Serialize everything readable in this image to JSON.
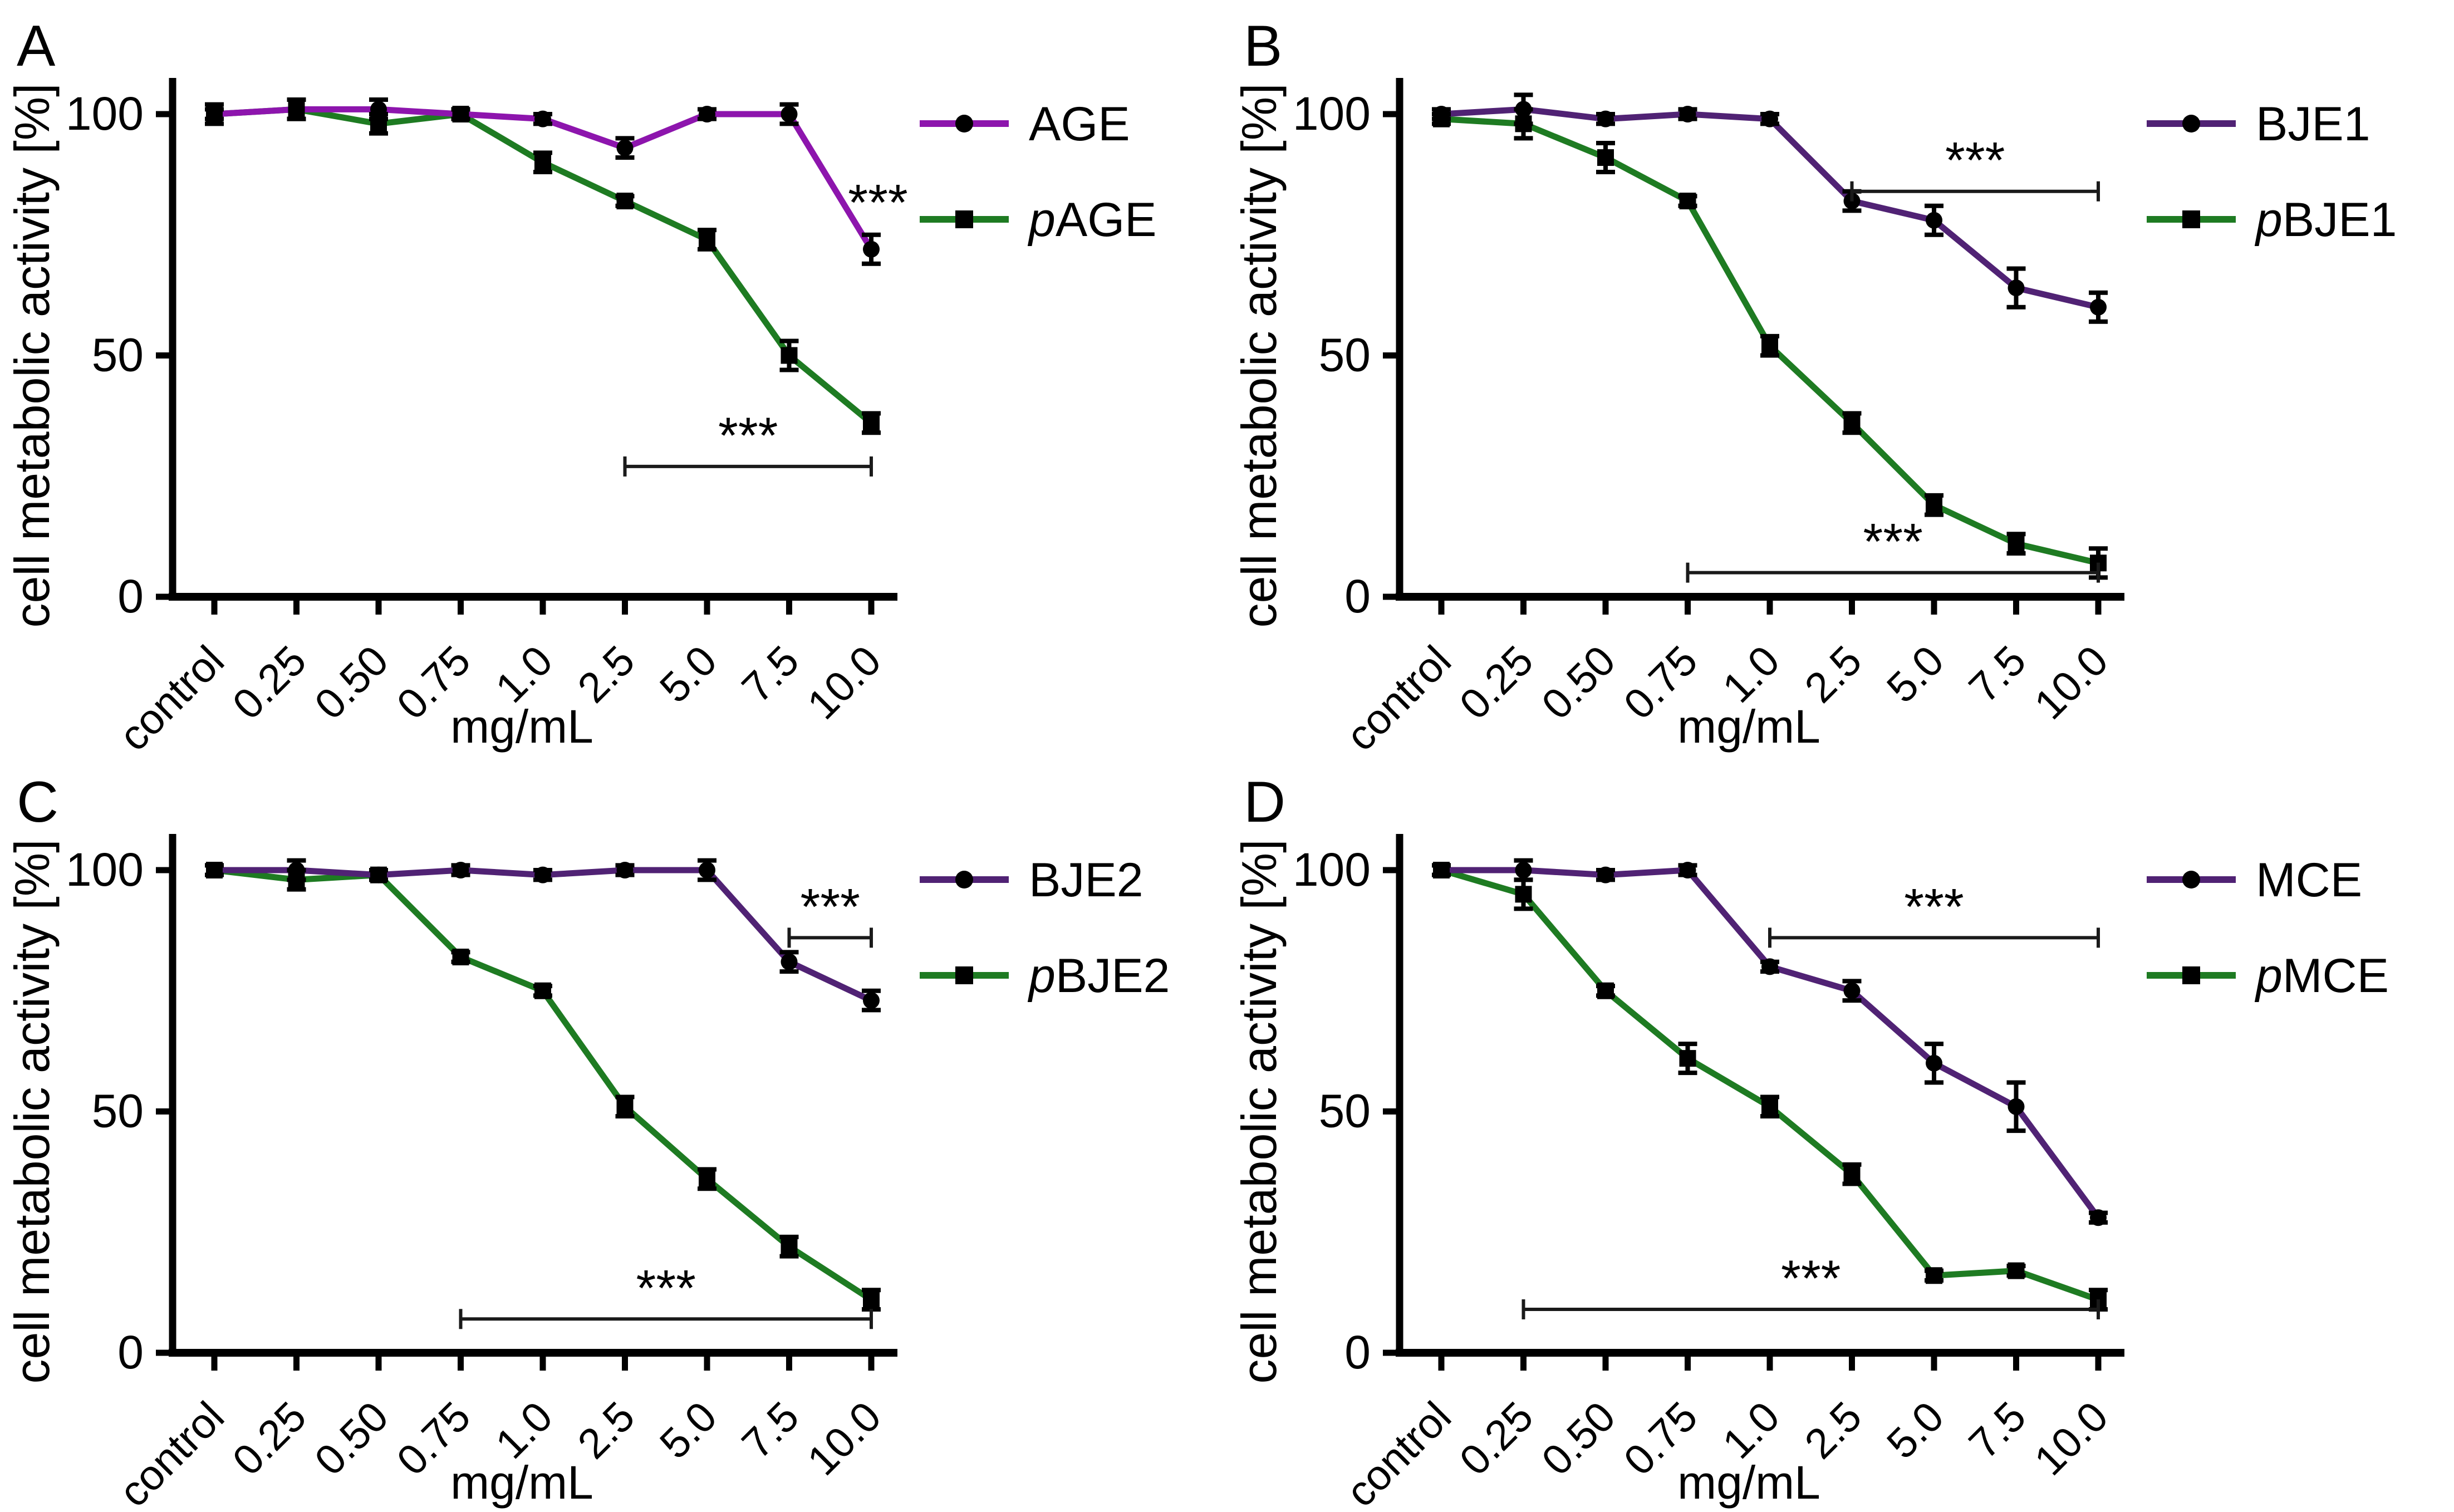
{
  "figure_title": "",
  "axis": {
    "xlabel": "mg/mL",
    "ylabel": "cell metabolic activity [%]",
    "categories": [
      "control",
      "0.25",
      "0.50",
      "0.75",
      "1.0",
      "2.5",
      "5.0",
      "7.5",
      "10.0"
    ],
    "yticks": [
      0,
      50,
      100
    ]
  },
  "colors": {
    "purple_bright": "#8D15AD",
    "purple_dark": "#502274",
    "green": "#1E7B22",
    "marker_black": "#000000",
    "bracket": "#1a1a1a"
  },
  "chart_data": [
    {
      "type": "line",
      "panel": "A",
      "xlabel": "mg/mL",
      "ylabel": "cell metabolic activity [%]",
      "categories": [
        "control",
        "0.25",
        "0.50",
        "0.75",
        "1.0",
        "2.5",
        "5.0",
        "7.5",
        "10.0"
      ],
      "yticks": [
        0,
        50,
        100
      ],
      "ylim": [
        0,
        112
      ],
      "grid": false,
      "legend_position": "right",
      "series": [
        {
          "name": "AGE",
          "legend": {
            "italic": "",
            "text": "AGE"
          },
          "color": "#8D15AD",
          "marker": "circle",
          "values": [
            100,
            101,
            101,
            100,
            99,
            93,
            100,
            100,
            72
          ],
          "errors": [
            2,
            2,
            2,
            1,
            1,
            2,
            1,
            2,
            3
          ]
        },
        {
          "name": "pAGE",
          "legend": {
            "italic": "p",
            "text": "AGE"
          },
          "color": "#1E7B22",
          "marker": "square",
          "values": [
            100,
            101,
            98,
            100,
            90,
            82,
            74,
            50,
            36
          ],
          "errors": [
            1,
            2,
            2,
            1,
            2,
            1,
            2,
            3,
            2
          ]
        }
      ],
      "point_annotations": [
        {
          "text": "***",
          "category": "10.0",
          "y": 78,
          "dx": 12
        }
      ],
      "brackets": [
        {
          "text": "***",
          "from": "2.5",
          "to": "10.0",
          "y": 27
        }
      ]
    },
    {
      "type": "line",
      "panel": "B",
      "xlabel": "mg/mL",
      "ylabel": "cell metabolic activity [%]",
      "categories": [
        "control",
        "0.25",
        "0.50",
        "0.75",
        "1.0",
        "2.5",
        "5.0",
        "7.5",
        "10.0"
      ],
      "yticks": [
        0,
        50,
        100
      ],
      "ylim": [
        0,
        112
      ],
      "grid": false,
      "legend_position": "right",
      "series": [
        {
          "name": "BJE1",
          "legend": {
            "italic": "",
            "text": "BJE1"
          },
          "color": "#502274",
          "marker": "circle",
          "values": [
            100,
            101,
            99,
            100,
            99,
            82,
            78,
            64,
            60
          ],
          "errors": [
            1,
            3,
            1,
            1,
            1,
            2,
            3,
            4,
            3
          ]
        },
        {
          "name": "pBJE1",
          "legend": {
            "italic": "p",
            "text": "BJE1"
          },
          "color": "#1E7B22",
          "marker": "square",
          "values": [
            99,
            98,
            91,
            82,
            52,
            36,
            19,
            11,
            7
          ],
          "errors": [
            1,
            3,
            3,
            1,
            2,
            2,
            2,
            2,
            3
          ]
        }
      ],
      "point_annotations": [],
      "brackets": [
        {
          "text": "***",
          "from": "2.5",
          "to": "10.0",
          "y": 84
        },
        {
          "text": "***",
          "from": "0.75",
          "to": "10.0",
          "y": 5
        }
      ]
    },
    {
      "type": "line",
      "panel": "C",
      "xlabel": "mg/mL",
      "ylabel": "cell metabolic activity [%]",
      "categories": [
        "control",
        "0.25",
        "0.50",
        "0.75",
        "1.0",
        "2.5",
        "5.0",
        "7.5",
        "10.0"
      ],
      "yticks": [
        0,
        50,
        100
      ],
      "ylim": [
        0,
        112
      ],
      "grid": false,
      "legend_position": "right",
      "series": [
        {
          "name": "BJE2",
          "legend": {
            "italic": "",
            "text": "BJE2"
          },
          "color": "#502274",
          "marker": "circle",
          "values": [
            100,
            100,
            99,
            100,
            99,
            100,
            100,
            81,
            73
          ],
          "errors": [
            1,
            2,
            1,
            1,
            1,
            1,
            2,
            2,
            2
          ]
        },
        {
          "name": "pBJE2",
          "legend": {
            "italic": "p",
            "text": "BJE2"
          },
          "color": "#1E7B22",
          "marker": "square",
          "values": [
            100,
            98,
            99,
            82,
            75,
            51,
            36,
            22,
            11
          ],
          "errors": [
            1,
            2,
            1,
            1,
            1,
            2,
            2,
            2,
            2
          ]
        }
      ],
      "point_annotations": [],
      "brackets": [
        {
          "text": "***",
          "from": "7.5",
          "to": "10.0",
          "y": 86
        },
        {
          "text": "***",
          "from": "0.75",
          "to": "10.0",
          "y": 7
        }
      ]
    },
    {
      "type": "line",
      "panel": "D",
      "xlabel": "mg/mL",
      "ylabel": "cell metabolic activity [%]",
      "categories": [
        "control",
        "0.25",
        "0.50",
        "0.75",
        "1.0",
        "2.5",
        "5.0",
        "7.5",
        "10.0"
      ],
      "yticks": [
        0,
        50,
        100
      ],
      "ylim": [
        0,
        112
      ],
      "grid": false,
      "legend_position": "right",
      "series": [
        {
          "name": "MCE",
          "legend": {
            "italic": "",
            "text": "MCE"
          },
          "color": "#502274",
          "marker": "circle",
          "values": [
            100,
            100,
            99,
            100,
            80,
            75,
            60,
            51,
            28
          ],
          "errors": [
            1,
            2,
            1,
            1,
            1,
            2,
            4,
            5,
            1
          ]
        },
        {
          "name": "pMCE",
          "legend": {
            "italic": "p",
            "text": "MCE"
          },
          "color": "#1E7B22",
          "marker": "square",
          "values": [
            100,
            95,
            75,
            61,
            51,
            37,
            16,
            17,
            11
          ],
          "errors": [
            1,
            3,
            1,
            3,
            2,
            2,
            1,
            1,
            2
          ]
        }
      ],
      "point_annotations": [],
      "brackets": [
        {
          "text": "***",
          "from": "1.0",
          "to": "10.0",
          "y": 86
        },
        {
          "text": "***",
          "from": "0.25",
          "to": "10.0",
          "y": 9
        }
      ]
    }
  ]
}
